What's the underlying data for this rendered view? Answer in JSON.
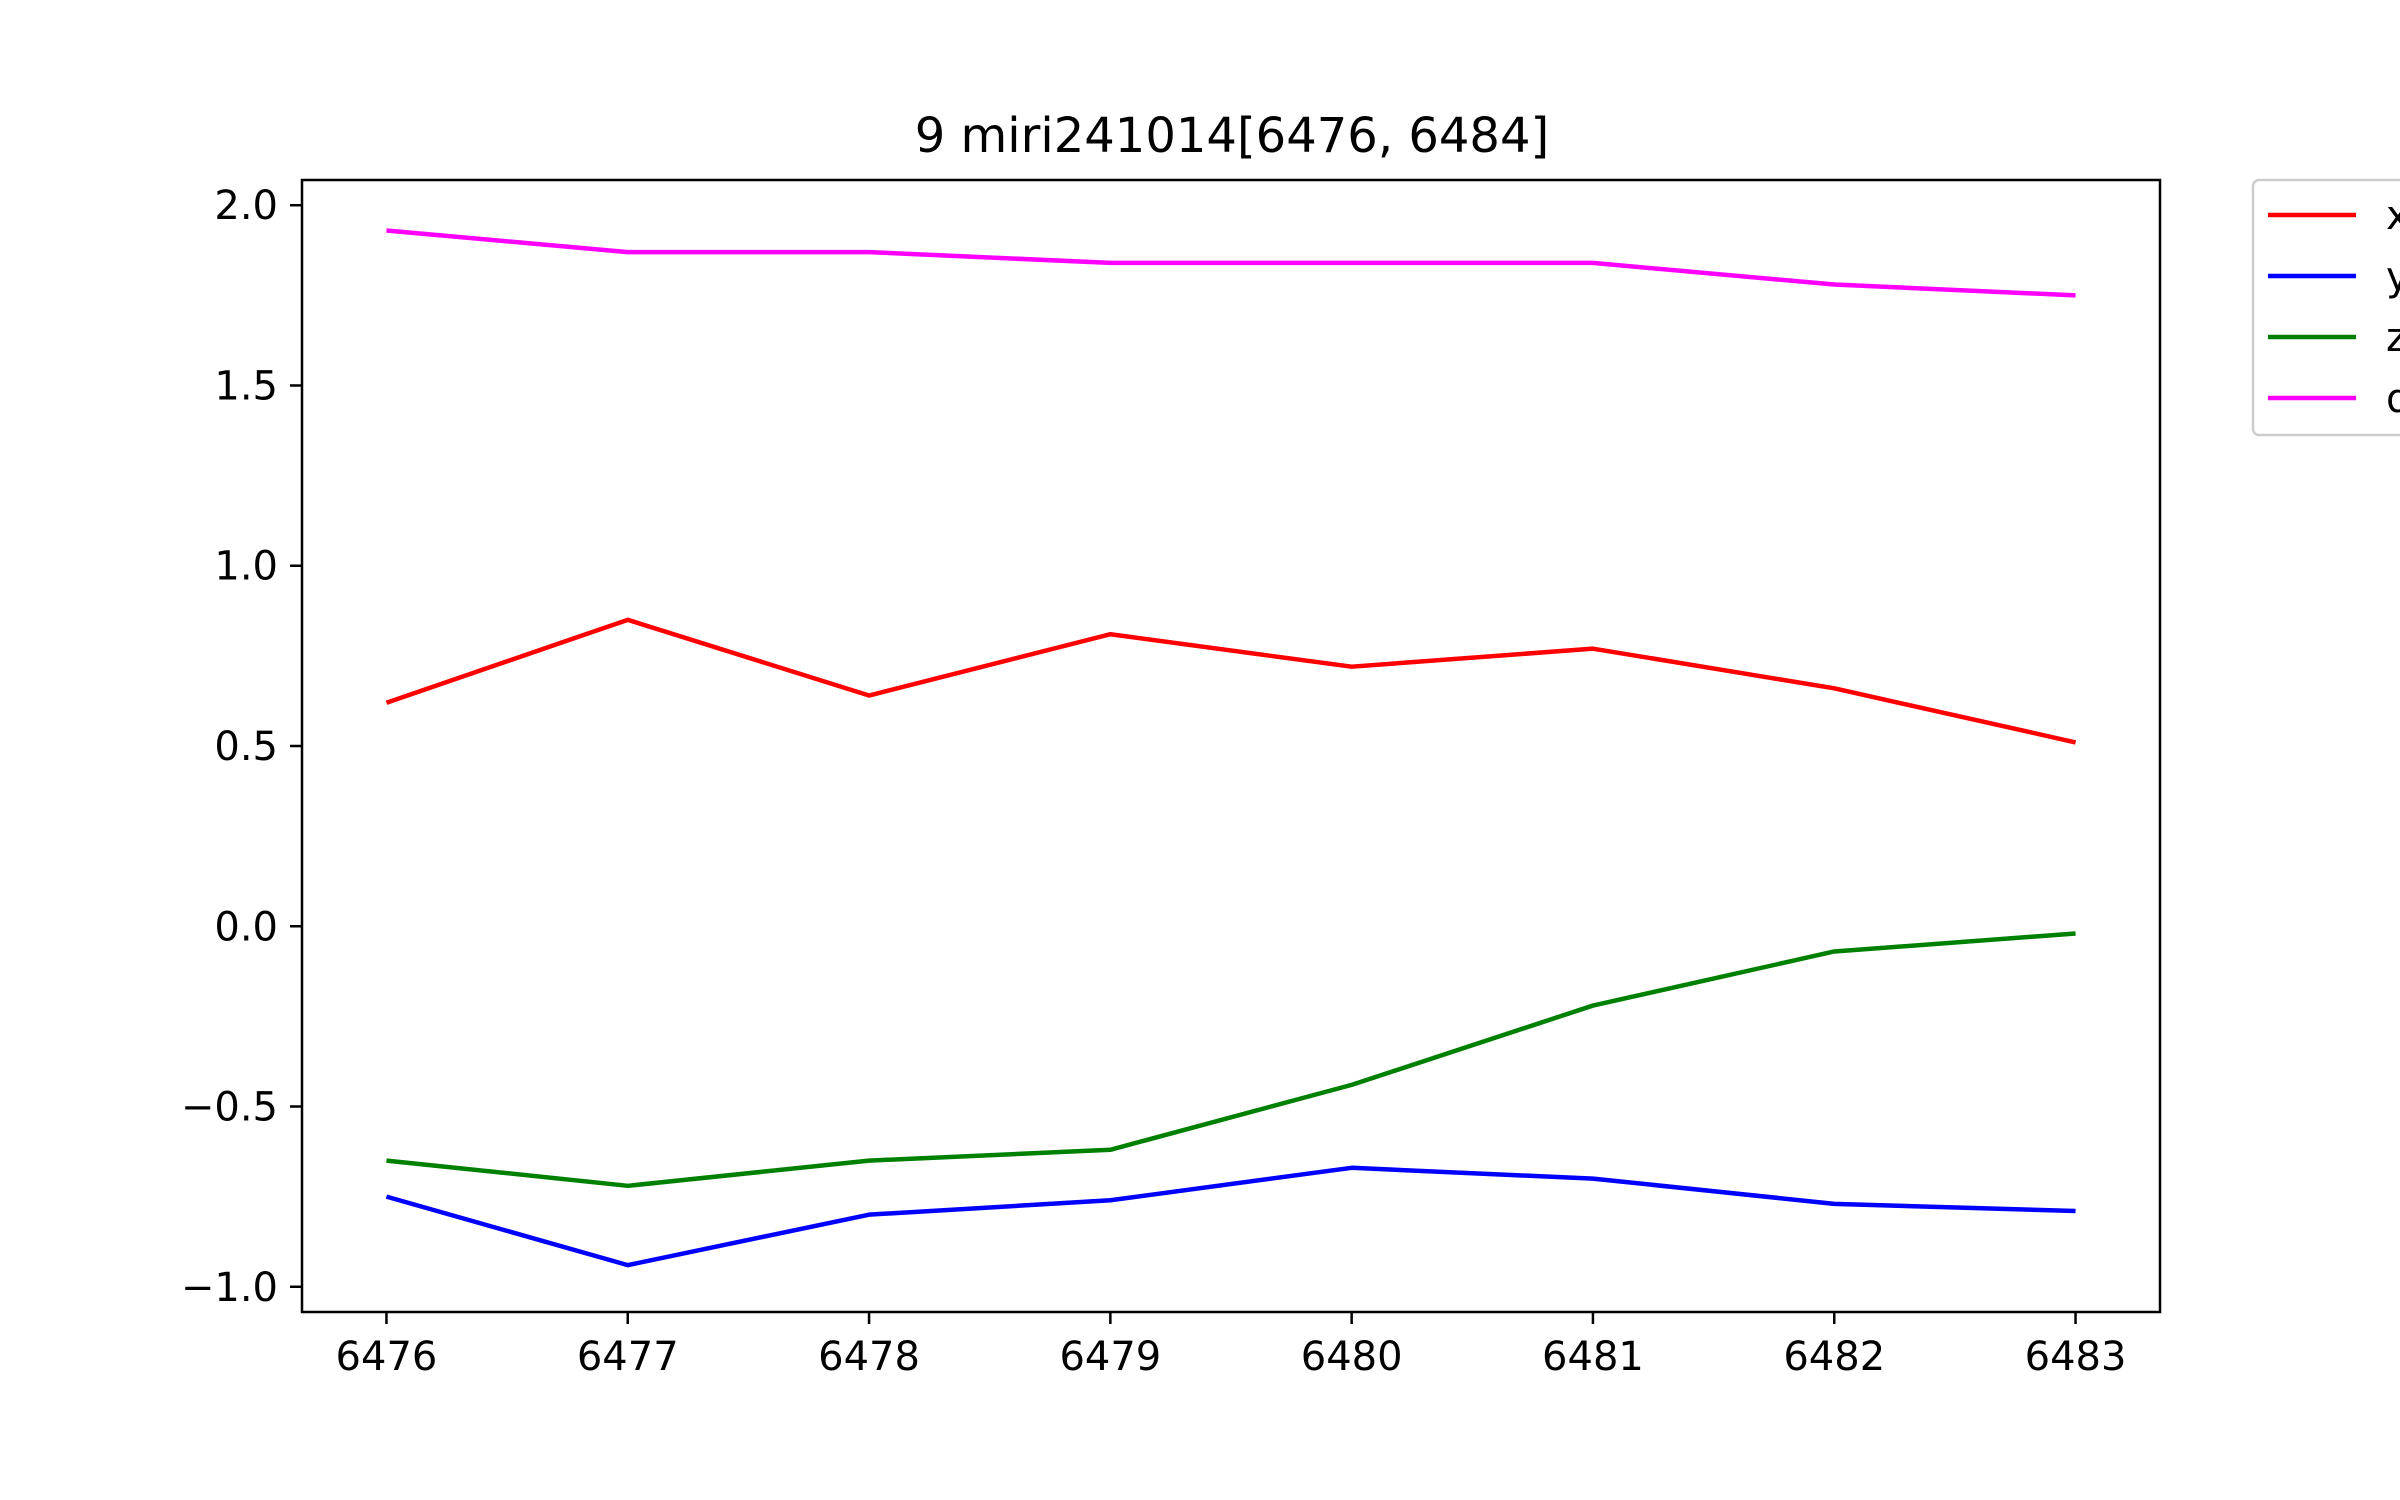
{
  "chart_data": {
    "type": "line",
    "title": "9 miri241014[6476, 6484]",
    "xlabel": "",
    "ylabel": "",
    "x": [
      6476,
      6477,
      6478,
      6479,
      6480,
      6481,
      6482,
      6483
    ],
    "x_ticks": [
      "6476",
      "6477",
      "6478",
      "6479",
      "6480",
      "6481",
      "6482",
      "6483"
    ],
    "y_ticks": [
      -1.0,
      -0.5,
      0.0,
      0.5,
      1.0,
      1.5,
      2.0
    ],
    "y_tick_labels": [
      "−1.0",
      "−0.5",
      "0.0",
      "0.5",
      "1.0",
      "1.5",
      "2.0"
    ],
    "xlim": [
      6475.65,
      6483.35
    ],
    "ylim": [
      -1.07,
      2.07
    ],
    "grid": false,
    "legend_placement": "outside upper right",
    "series": [
      {
        "name": "x",
        "color": "#ff0000",
        "values": [
          0.62,
          0.85,
          0.64,
          0.81,
          0.72,
          0.77,
          0.66,
          0.51
        ]
      },
      {
        "name": "y",
        "color": "#0000ff",
        "values": [
          -0.75,
          -0.94,
          -0.8,
          -0.76,
          -0.67,
          -0.7,
          -0.77,
          -0.79
        ]
      },
      {
        "name": "z",
        "color": "#008000",
        "values": [
          -0.65,
          -0.72,
          -0.65,
          -0.62,
          -0.44,
          -0.22,
          -0.07,
          -0.02
        ]
      },
      {
        "name": "d",
        "color": "#ff00ff",
        "values": [
          1.93,
          1.87,
          1.87,
          1.84,
          1.84,
          1.84,
          1.78,
          1.75
        ]
      }
    ]
  }
}
